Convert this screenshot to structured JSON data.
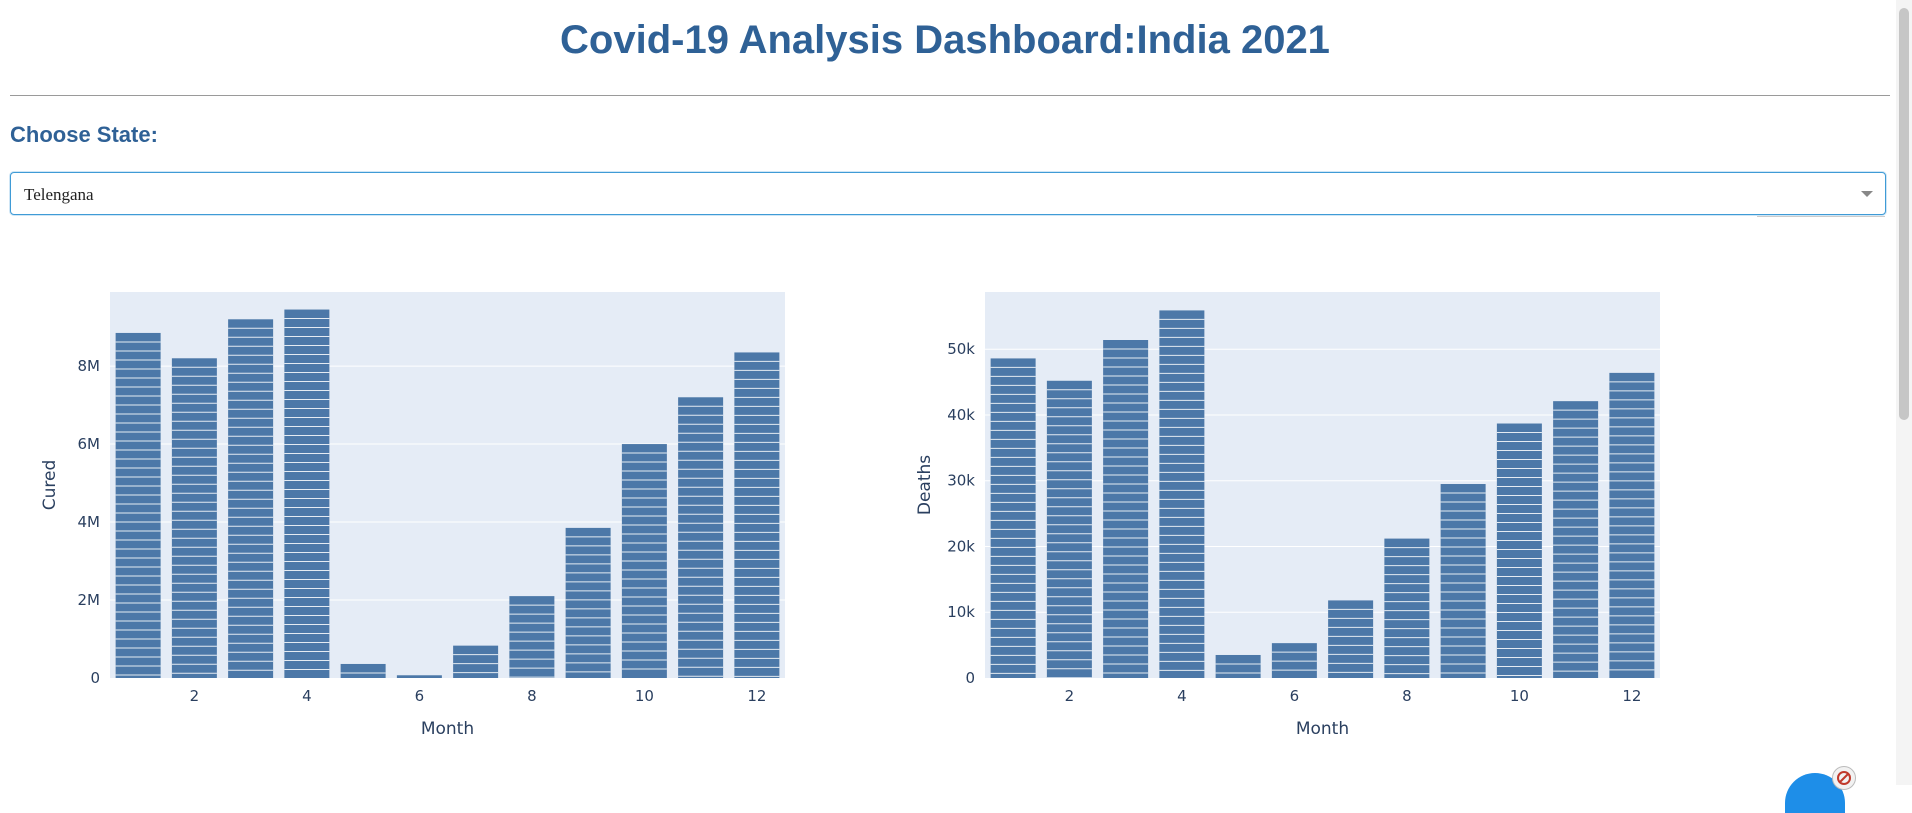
{
  "header": {
    "title": "Covid-19 Analysis Dashboard:India 2021"
  },
  "filter": {
    "label": "Choose State:",
    "selected": "Telengana"
  },
  "colors": {
    "title": "#2f6196",
    "bar": "#4c78a8",
    "plot_bg": "#e5ecf6",
    "axis_text": "#2a3f5f"
  },
  "icons": [
    "chevron-down-icon",
    "block-icon"
  ],
  "chart_data": [
    {
      "type": "bar",
      "xlabel": "Month",
      "ylabel": "Cured",
      "x": [
        1,
        2,
        3,
        4,
        5,
        6,
        7,
        8,
        9,
        10,
        11,
        12
      ],
      "values": [
        8850000,
        8200000,
        9200000,
        9450000,
        360000,
        70000,
        830000,
        2100000,
        3850000,
        6000000,
        7200000,
        8350000
      ],
      "xlim": [
        0.5,
        12.5
      ],
      "ylim": [
        0,
        9900000
      ],
      "xticks": [
        2,
        4,
        6,
        8,
        10,
        12
      ],
      "yticks": [
        0,
        2000000,
        4000000,
        6000000,
        8000000
      ],
      "ytick_labels": [
        "0",
        "2M",
        "4M",
        "6M",
        "8M"
      ],
      "grid": true
    },
    {
      "type": "bar",
      "xlabel": "Month",
      "ylabel": "Deaths",
      "x": [
        1,
        2,
        3,
        4,
        5,
        6,
        7,
        8,
        9,
        10,
        11,
        12
      ],
      "values": [
        48600,
        45200,
        51400,
        55900,
        3500,
        5300,
        11800,
        21200,
        29500,
        38700,
        42100,
        46400
      ],
      "xlim": [
        0.5,
        12.5
      ],
      "ylim": [
        0,
        58700
      ],
      "xticks": [
        2,
        4,
        6,
        8,
        10,
        12
      ],
      "yticks": [
        0,
        10000,
        20000,
        30000,
        40000,
        50000
      ],
      "ytick_labels": [
        "0",
        "10k",
        "20k",
        "30k",
        "40k",
        "50k"
      ],
      "grid": true
    }
  ]
}
